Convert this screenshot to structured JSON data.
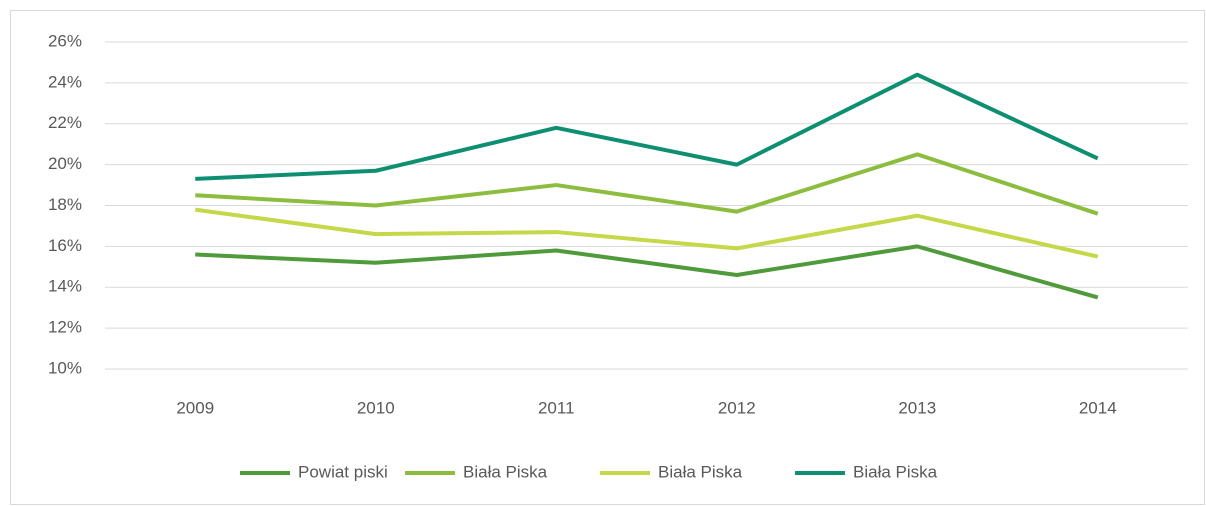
{
  "chart_data": {
    "type": "line",
    "categories": [
      "2009",
      "2010",
      "2011",
      "2012",
      "2013",
      "2014"
    ],
    "series": [
      {
        "name": "Powiat piski",
        "color": "#4f9a3a",
        "values": [
          15.6,
          15.2,
          15.8,
          14.6,
          16.0,
          13.5
        ]
      },
      {
        "name": "Biała Piska",
        "color": "#8cbd3e",
        "values": [
          18.5,
          18.0,
          19.0,
          17.7,
          20.5,
          17.6
        ]
      },
      {
        "name": "Biała Piska",
        "color": "#c4d84a",
        "values": [
          17.8,
          16.6,
          16.7,
          15.9,
          17.5,
          15.5
        ]
      },
      {
        "name": "Biała Piska",
        "color": "#0f8f72",
        "values": [
          19.3,
          19.7,
          21.8,
          20.0,
          24.4,
          20.3
        ]
      }
    ],
    "ylim": [
      10,
      26
    ],
    "yticks": [
      {
        "value": 10,
        "label": "10%"
      },
      {
        "value": 12,
        "label": "12%"
      },
      {
        "value": 14,
        "label": "14%"
      },
      {
        "value": 16,
        "label": "16%"
      },
      {
        "value": 18,
        "label": "18%"
      },
      {
        "value": 20,
        "label": "20%"
      },
      {
        "value": 22,
        "label": "22%"
      },
      {
        "value": 24,
        "label": "24%"
      },
      {
        "value": 26,
        "label": "26%"
      }
    ],
    "grid": true,
    "legend": "bottom"
  }
}
